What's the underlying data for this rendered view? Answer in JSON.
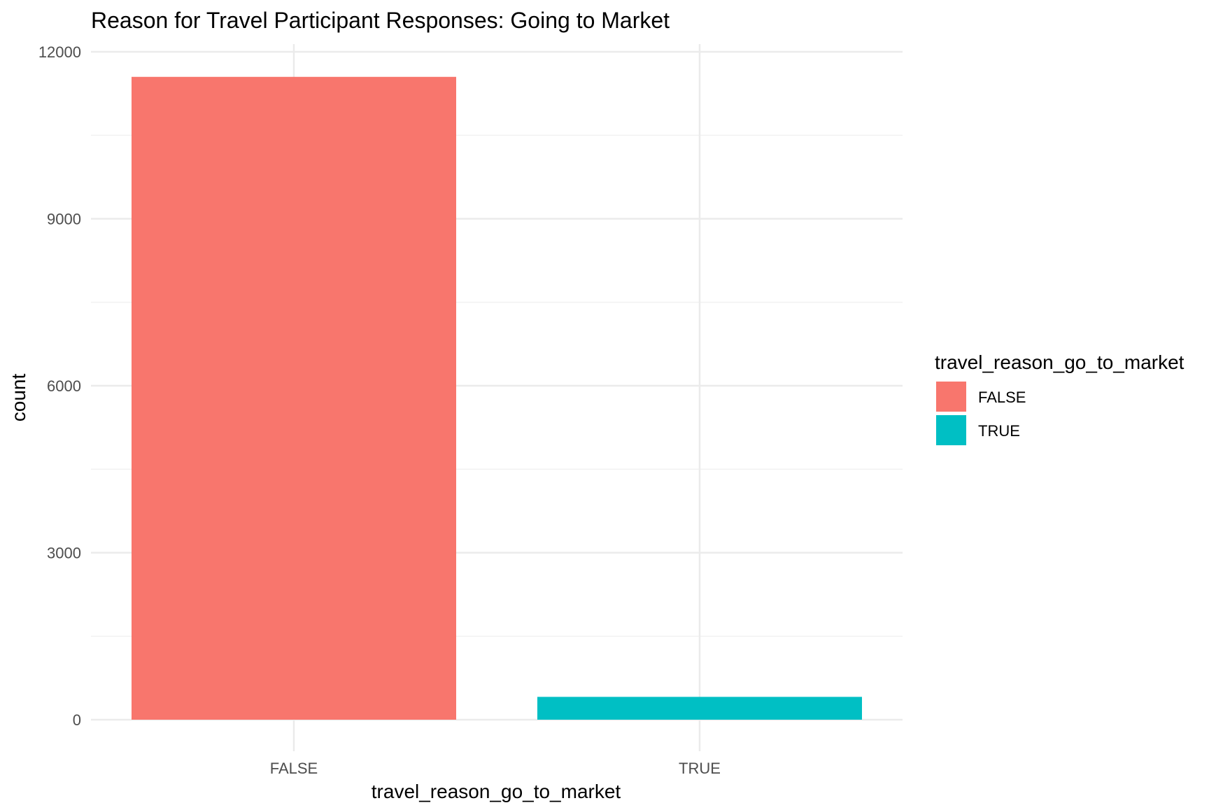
{
  "chart_data": {
    "type": "bar",
    "title": "Reason for Travel Participant Responses: Going to Market",
    "xlabel": "travel_reason_go_to_market",
    "ylabel": "count",
    "categories": [
      "FALSE",
      "TRUE"
    ],
    "values": [
      11550,
      410
    ],
    "ylim": [
      0,
      12000
    ],
    "yticks": [
      0,
      3000,
      6000,
      9000,
      12000
    ],
    "grid": true,
    "legend": {
      "title": "travel_reason_go_to_market",
      "placement": "right",
      "entries": [
        "FALSE",
        "TRUE"
      ]
    },
    "colors": {
      "FALSE": "#F8766D",
      "TRUE": "#00BFC4",
      "grid_major": "#EBEBEB",
      "grid_minor": "#F2F2F2",
      "text": "#000000",
      "tick_text": "#4D4D4D"
    }
  }
}
